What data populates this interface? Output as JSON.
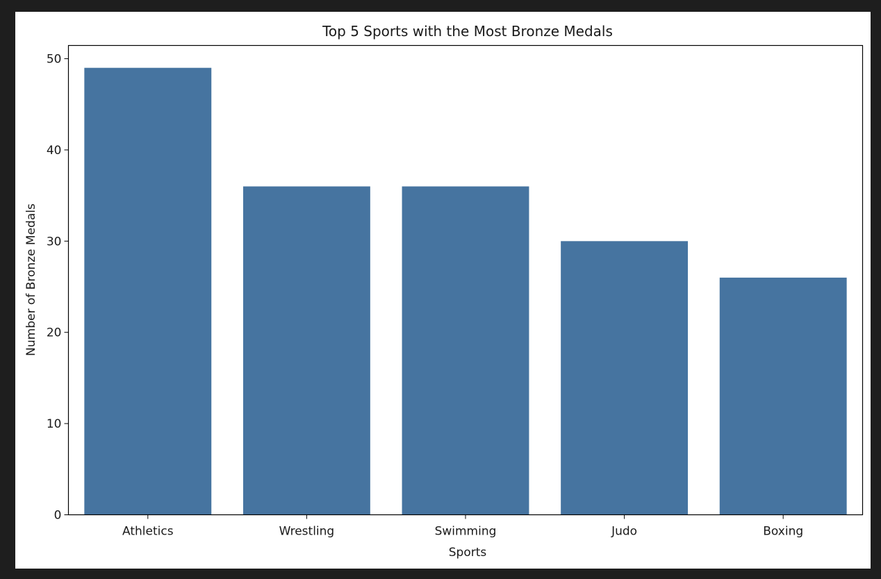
{
  "chart_data": {
    "type": "bar",
    "title": "Top 5 Sports with the Most Bronze Medals",
    "xlabel": "Sports",
    "ylabel": "Number of Bronze Medals",
    "categories": [
      "Athletics",
      "Wrestling",
      "Swimming",
      "Judo",
      "Boxing"
    ],
    "values": [
      49,
      36,
      36,
      30,
      26
    ],
    "ylim": [
      0,
      51.45
    ],
    "yticks": [
      0,
      10,
      20,
      30,
      40,
      50
    ],
    "grid": false,
    "legend": "none",
    "bar_color": "#4674a0"
  }
}
